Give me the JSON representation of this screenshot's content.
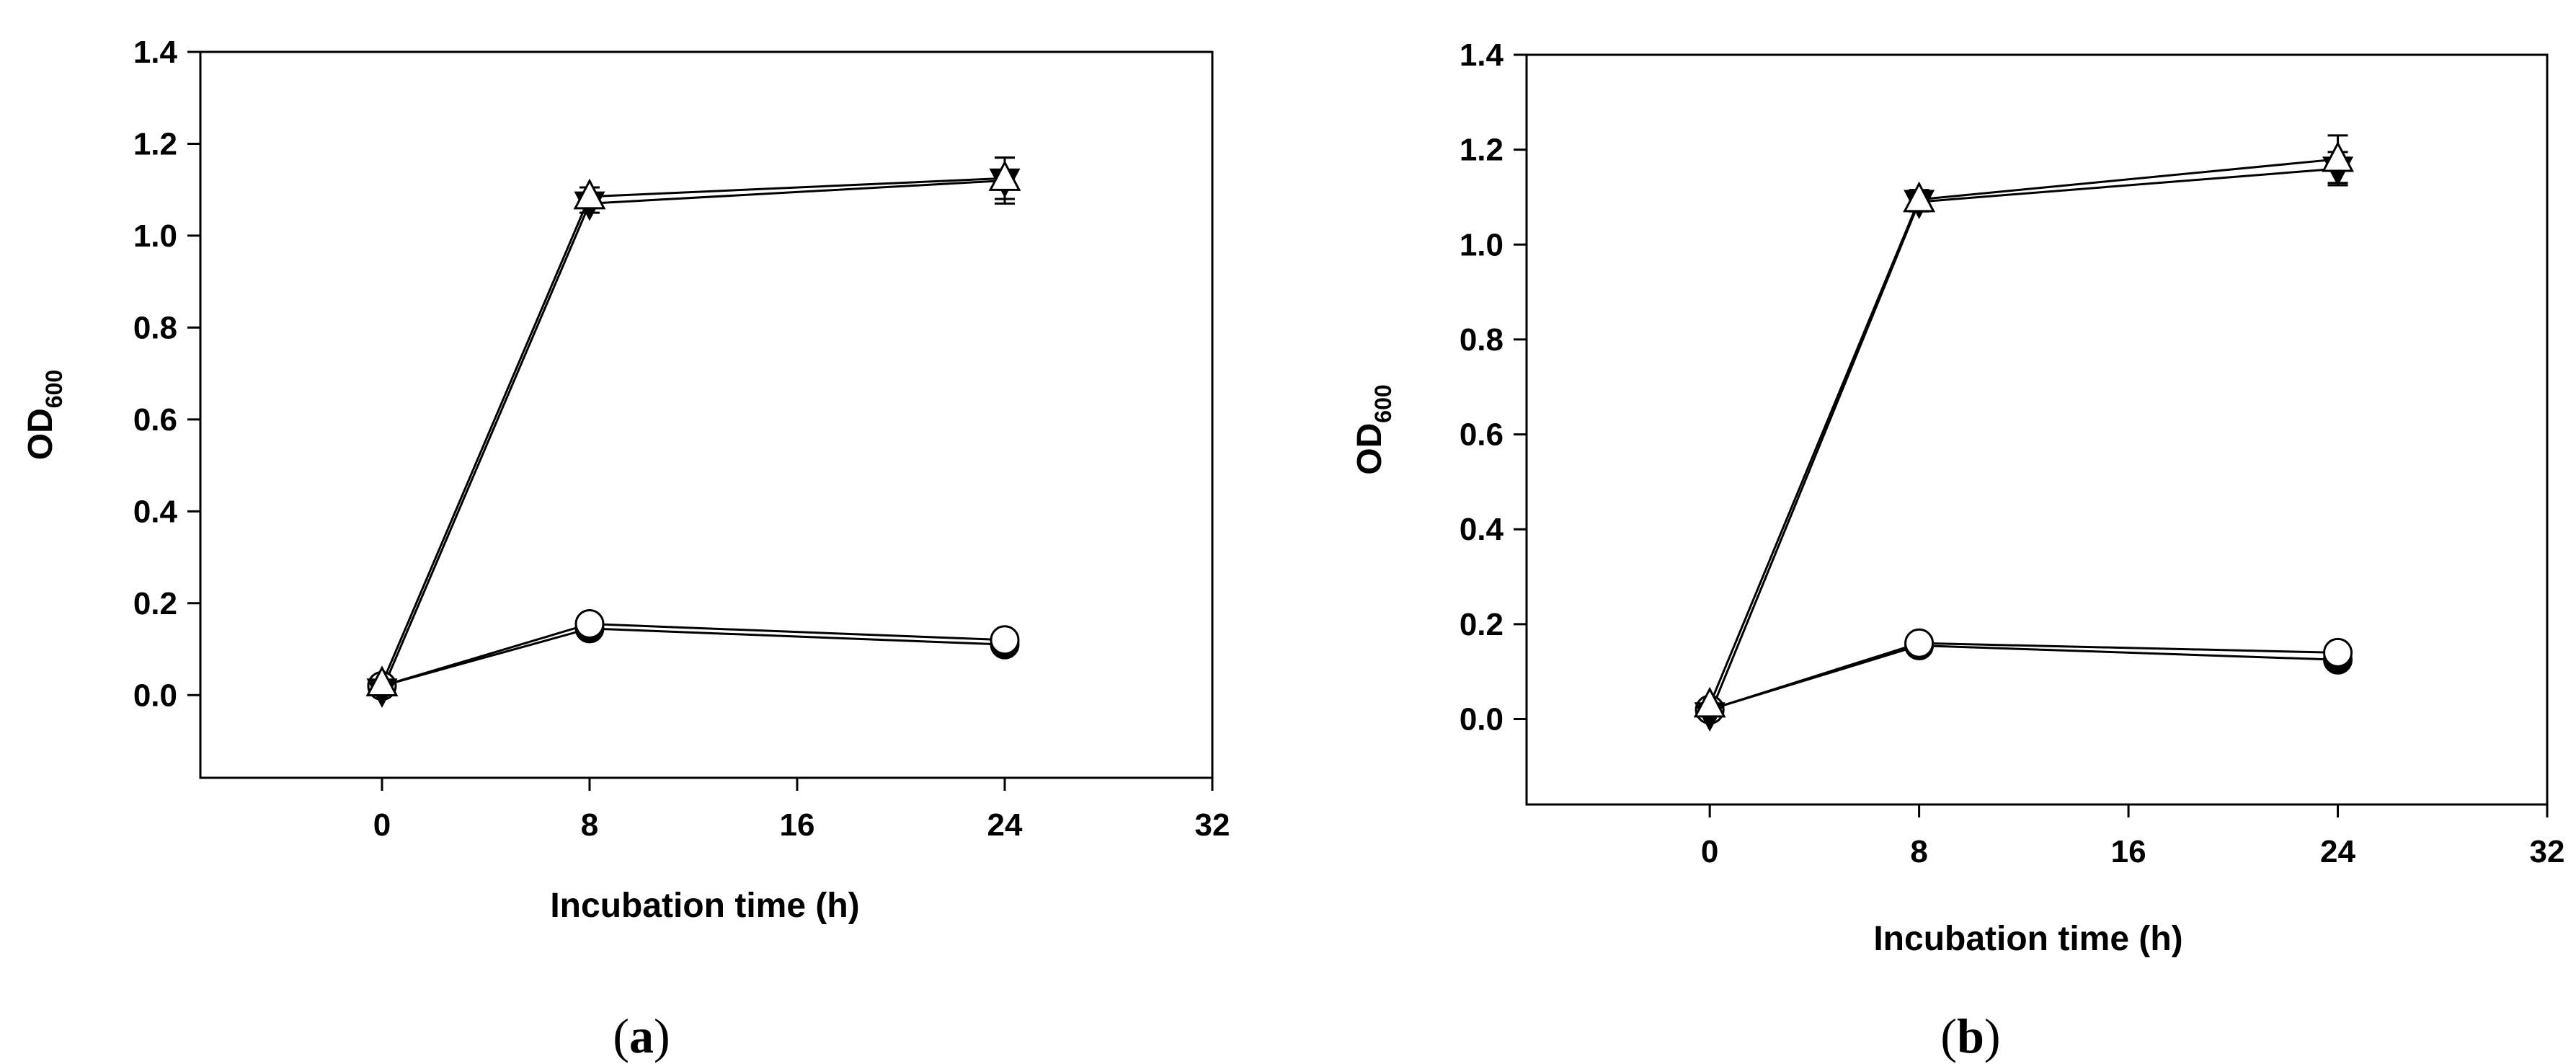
{
  "chart_data": [
    {
      "type": "line",
      "panel_label_open": "(",
      "panel_label_letter": "a",
      "panel_label_close": ")",
      "xlabel": "Incubation time (h)",
      "ylabel_main": "OD",
      "ylabel_sub": "600",
      "xlim": [
        -7,
        32
      ],
      "ylim": [
        -0.18,
        1.4
      ],
      "xticks": [
        0,
        8,
        16,
        24,
        32
      ],
      "xtick_labels": [
        "0",
        "8",
        "16",
        "24",
        "32"
      ],
      "yticks": [
        0.0,
        0.2,
        0.4,
        0.6,
        0.8,
        1.0,
        1.2,
        1.4
      ],
      "ytick_labels": [
        "0.0",
        "0.2",
        "0.4",
        "0.6",
        "0.8",
        "1.0",
        "1.2",
        "1.4"
      ],
      "series": [
        {
          "marker": "circle-filled",
          "x": [
            0,
            8,
            24
          ],
          "y": [
            0.02,
            0.145,
            0.11
          ],
          "err": [
            0.005,
            0.01,
            0.01
          ]
        },
        {
          "marker": "circle-open",
          "x": [
            0,
            8,
            24
          ],
          "y": [
            0.02,
            0.155,
            0.12
          ],
          "err": [
            0.005,
            0.01,
            0.01
          ]
        },
        {
          "marker": "triangle-down-filled",
          "x": [
            0,
            8,
            24
          ],
          "y": [
            0.01,
            1.07,
            1.12
          ],
          "err": [
            0.01,
            0.02,
            0.05
          ]
        },
        {
          "marker": "triangle-up-open",
          "x": [
            0,
            8,
            24
          ],
          "y": [
            0.025,
            1.085,
            1.125
          ],
          "err": [
            0.01,
            0.02,
            0.045
          ]
        }
      ]
    },
    {
      "type": "line",
      "panel_label_open": "(",
      "panel_label_letter": "b",
      "panel_label_close": ")",
      "xlabel": "Incubation time (h)",
      "ylabel_main": "OD",
      "ylabel_sub": "600",
      "xlim": [
        -7,
        32
      ],
      "ylim": [
        -0.18,
        1.4
      ],
      "xticks": [
        0,
        8,
        16,
        24,
        32
      ],
      "xtick_labels": [
        "0",
        "8",
        "16",
        "24",
        "32"
      ],
      "yticks": [
        0.0,
        0.2,
        0.4,
        0.6,
        0.8,
        1.0,
        1.2,
        1.4
      ],
      "ytick_labels": [
        "0.0",
        "0.2",
        "0.4",
        "0.6",
        "0.8",
        "1.0",
        "1.2",
        "1.4"
      ],
      "series": [
        {
          "marker": "circle-filled",
          "x": [
            0,
            8,
            24
          ],
          "y": [
            0.02,
            0.155,
            0.125
          ],
          "err": [
            0.005,
            0.01,
            0.01
          ]
        },
        {
          "marker": "circle-open",
          "x": [
            0,
            8,
            24
          ],
          "y": [
            0.02,
            0.16,
            0.14
          ],
          "err": [
            0.005,
            0.01,
            0.01
          ]
        },
        {
          "marker": "triangle-down-filled",
          "x": [
            0,
            8,
            24
          ],
          "y": [
            0.01,
            1.09,
            1.16
          ],
          "err": [
            0.01,
            0.02,
            0.035
          ]
        },
        {
          "marker": "triangle-up-open",
          "x": [
            0,
            8,
            24
          ],
          "y": [
            0.03,
            1.095,
            1.18
          ],
          "err": [
            0.01,
            0.02,
            0.05
          ]
        }
      ]
    }
  ]
}
